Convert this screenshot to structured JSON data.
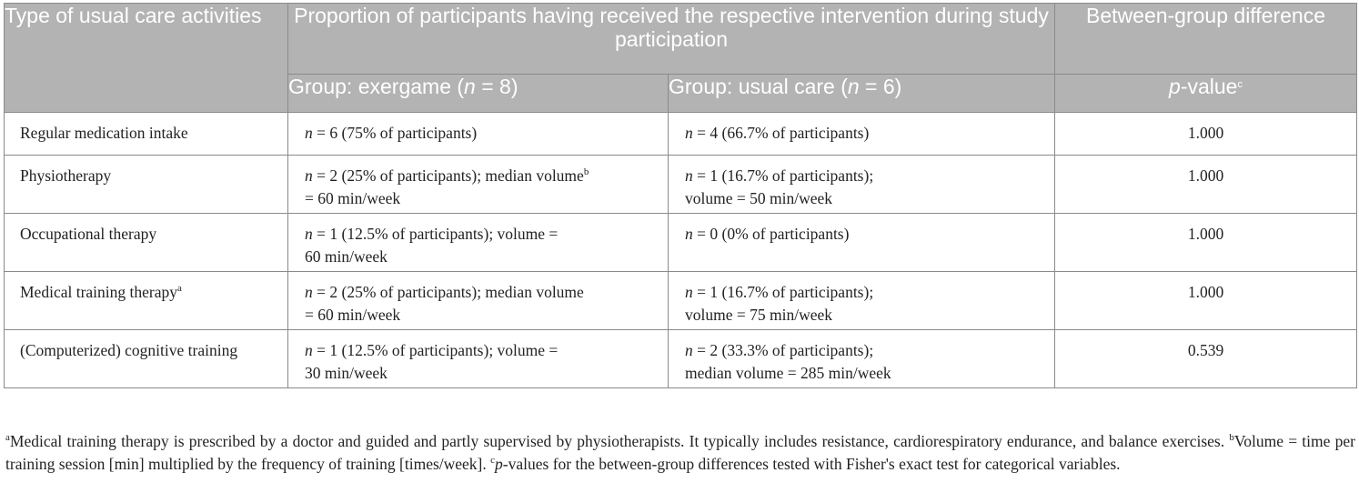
{
  "header": {
    "col1": "Type of usual care activities",
    "col2": "Proportion of participants having received the respective intervention during study participation",
    "col3": "Between-group difference",
    "exergame_prefix": "Group: exergame (",
    "n_symbol": "n",
    "exergame_n": " = 8)",
    "usual_prefix": "Group: usual care (",
    "usual_n": " = 6)",
    "p_symbol": "p",
    "p_suffix": "-value",
    "p_sup": "c"
  },
  "rows": [
    {
      "activity": "Regular medication intake",
      "activity_sup": "",
      "exergame": [
        {
          "i": "n"
        },
        {
          "t": " = 6 (75% of participants)"
        }
      ],
      "usual": [
        {
          "i": "n"
        },
        {
          "t": " = 4 (66.7% of participants)"
        }
      ],
      "p": "1.000"
    },
    {
      "activity": "Physiotherapy",
      "activity_sup": "",
      "exergame": [
        {
          "i": "n"
        },
        {
          "t": " = 2 (25% of participants); median volume"
        },
        {
          "s": "b"
        },
        {
          "br": true
        },
        {
          "t": "= 60 min/week"
        }
      ],
      "usual": [
        {
          "i": "n"
        },
        {
          "t": " = 1 (16.7% of participants);"
        },
        {
          "br": true
        },
        {
          "t": "volume = 50 min/week"
        }
      ],
      "p": "1.000"
    },
    {
      "activity": "Occupational therapy",
      "activity_sup": "",
      "exergame": [
        {
          "i": "n"
        },
        {
          "t": " = 1 (12.5% of participants); volume ="
        },
        {
          "br": true
        },
        {
          "t": "60 min/week"
        }
      ],
      "usual": [
        {
          "i": "n"
        },
        {
          "t": " = 0 (0% of participants)"
        }
      ],
      "p": "1.000"
    },
    {
      "activity": "Medical training therapy",
      "activity_sup": "a",
      "exergame": [
        {
          "i": "n"
        },
        {
          "t": " = 2 (25% of participants); median volume"
        },
        {
          "br": true
        },
        {
          "t": "= 60 min/week"
        }
      ],
      "usual": [
        {
          "i": "n"
        },
        {
          "t": " = 1 (16.7% of participants);"
        },
        {
          "br": true
        },
        {
          "t": "volume = 75 min/week"
        }
      ],
      "p": "1.000"
    },
    {
      "activity": "(Computerized) cognitive training",
      "activity_sup": "",
      "exergame": [
        {
          "i": "n"
        },
        {
          "t": " = 1 (12.5% of participants); volume ="
        },
        {
          "br": true
        },
        {
          "t": "30 min/week"
        }
      ],
      "usual": [
        {
          "i": "n"
        },
        {
          "t": " = 2 (33.3% of participants);"
        },
        {
          "br": true
        },
        {
          "t": "median volume = 285 min/week"
        }
      ],
      "p": "0.539"
    }
  ],
  "footnotes": {
    "a_mark": "a",
    "a_text": "Medical training therapy is prescribed by a doctor and guided and partly supervised by physiotherapists. It typically includes resistance, cardiorespiratory endurance, and balance exercises. ",
    "b_mark": "b",
    "b_text": "Volume = time per training session [min] multiplied by the frequency of training [times/week]. ",
    "c_mark": "c",
    "c_p": "p",
    "c_text": "-values for the between-group differences tested with Fisher's exact test for categorical variables."
  }
}
